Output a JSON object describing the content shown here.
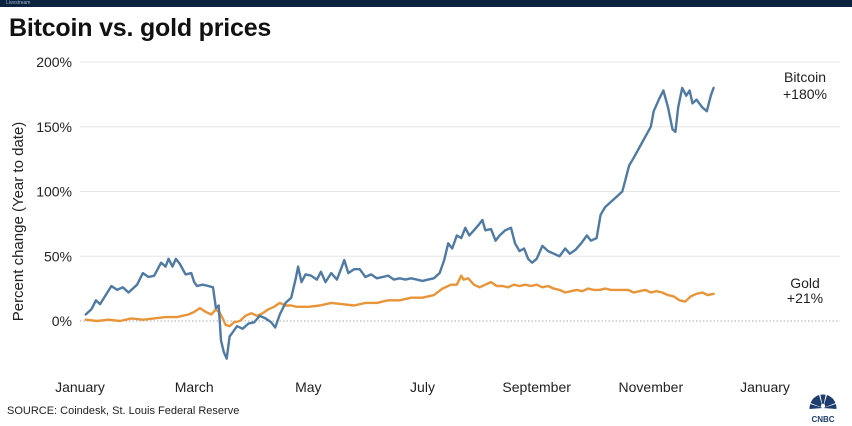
{
  "header": {
    "watermark": "Livestream",
    "title": "Bitcoin vs. gold prices"
  },
  "footer": {
    "source": "SOURCE: Coindesk, St. Louis Federal Reserve",
    "logo_text": "CNBC"
  },
  "chart_data": {
    "type": "line",
    "title": "Bitcoin vs. gold prices",
    "ylabel": "Percent change (Year to date)",
    "xlabel": "",
    "ylim": [
      -35,
      205
    ],
    "y_ticks": [
      0,
      50,
      100,
      150,
      200
    ],
    "y_tick_labels": [
      "0%",
      "50%",
      "100%",
      "150%",
      "200%"
    ],
    "x_tick_labels": [
      "January",
      "March",
      "May",
      "July",
      "September",
      "November",
      "January"
    ],
    "x_tick_months": [
      0,
      2,
      4,
      6,
      8,
      10,
      12
    ],
    "x_unit": "months since start of year",
    "grid": "horizontal",
    "annotations": [
      {
        "series": "Bitcoin",
        "line1": "Bitcoin",
        "line2": "+180%"
      },
      {
        "series": "Gold",
        "line1": "Gold",
        "line2": "+21%"
      }
    ],
    "series": [
      {
        "name": "Bitcoin",
        "color": "#4f7aa3",
        "points": [
          [
            0.1,
            5
          ],
          [
            0.2,
            9
          ],
          [
            0.28,
            16
          ],
          [
            0.35,
            13
          ],
          [
            0.45,
            20
          ],
          [
            0.55,
            27
          ],
          [
            0.65,
            24
          ],
          [
            0.75,
            26
          ],
          [
            0.85,
            22
          ],
          [
            1.0,
            28
          ],
          [
            1.1,
            37
          ],
          [
            1.2,
            34
          ],
          [
            1.3,
            35
          ],
          [
            1.42,
            45
          ],
          [
            1.5,
            42
          ],
          [
            1.55,
            48
          ],
          [
            1.62,
            42
          ],
          [
            1.68,
            48
          ],
          [
            1.75,
            44
          ],
          [
            1.85,
            36
          ],
          [
            1.95,
            37
          ],
          [
            2.0,
            30
          ],
          [
            2.05,
            27
          ],
          [
            2.15,
            28
          ],
          [
            2.25,
            27
          ],
          [
            2.33,
            26
          ],
          [
            2.38,
            10
          ],
          [
            2.43,
            12
          ],
          [
            2.47,
            -15
          ],
          [
            2.52,
            -24
          ],
          [
            2.57,
            -29
          ],
          [
            2.62,
            -12
          ],
          [
            2.67,
            -9
          ],
          [
            2.75,
            -4
          ],
          [
            2.85,
            -6
          ],
          [
            2.95,
            -2
          ],
          [
            3.05,
            -1
          ],
          [
            3.15,
            4
          ],
          [
            3.25,
            2
          ],
          [
            3.35,
            -1
          ],
          [
            3.42,
            -5
          ],
          [
            3.5,
            5
          ],
          [
            3.6,
            14
          ],
          [
            3.7,
            18
          ],
          [
            3.78,
            33
          ],
          [
            3.82,
            42
          ],
          [
            3.88,
            30
          ],
          [
            3.95,
            36
          ],
          [
            4.05,
            35
          ],
          [
            4.15,
            32
          ],
          [
            4.22,
            38
          ],
          [
            4.3,
            30
          ],
          [
            4.4,
            37
          ],
          [
            4.5,
            32
          ],
          [
            4.58,
            41
          ],
          [
            4.63,
            47
          ],
          [
            4.7,
            37
          ],
          [
            4.8,
            40
          ],
          [
            4.9,
            40
          ],
          [
            5.0,
            34
          ],
          [
            5.1,
            36
          ],
          [
            5.2,
            33
          ],
          [
            5.3,
            34
          ],
          [
            5.4,
            35
          ],
          [
            5.5,
            32
          ],
          [
            5.6,
            33
          ],
          [
            5.7,
            32
          ],
          [
            5.8,
            33
          ],
          [
            5.9,
            32
          ],
          [
            6.0,
            31
          ],
          [
            6.1,
            32
          ],
          [
            6.2,
            33
          ],
          [
            6.3,
            37
          ],
          [
            6.38,
            47
          ],
          [
            6.45,
            60
          ],
          [
            6.52,
            56
          ],
          [
            6.6,
            66
          ],
          [
            6.68,
            64
          ],
          [
            6.75,
            72
          ],
          [
            6.82,
            66
          ],
          [
            6.9,
            70
          ],
          [
            6.98,
            74
          ],
          [
            7.05,
            78
          ],
          [
            7.1,
            70
          ],
          [
            7.2,
            71
          ],
          [
            7.28,
            62
          ],
          [
            7.35,
            66
          ],
          [
            7.45,
            70
          ],
          [
            7.55,
            72
          ],
          [
            7.62,
            60
          ],
          [
            7.7,
            54
          ],
          [
            7.78,
            56
          ],
          [
            7.85,
            48
          ],
          [
            7.92,
            45
          ],
          [
            8.0,
            48
          ],
          [
            8.1,
            58
          ],
          [
            8.2,
            54
          ],
          [
            8.3,
            52
          ],
          [
            8.4,
            50
          ],
          [
            8.5,
            56
          ],
          [
            8.58,
            52
          ],
          [
            8.68,
            55
          ],
          [
            8.78,
            60
          ],
          [
            8.88,
            66
          ],
          [
            8.95,
            62
          ],
          [
            9.05,
            64
          ],
          [
            9.12,
            82
          ],
          [
            9.2,
            88
          ],
          [
            9.3,
            92
          ],
          [
            9.4,
            96
          ],
          [
            9.5,
            100
          ],
          [
            9.55,
            108
          ],
          [
            9.62,
            120
          ],
          [
            9.7,
            126
          ],
          [
            9.8,
            134
          ],
          [
            9.9,
            142
          ],
          [
            10.0,
            150
          ],
          [
            10.05,
            162
          ],
          [
            10.15,
            172
          ],
          [
            10.22,
            178
          ],
          [
            10.3,
            165
          ],
          [
            10.38,
            148
          ],
          [
            10.43,
            146
          ],
          [
            10.48,
            165
          ],
          [
            10.55,
            180
          ],
          [
            10.62,
            174
          ],
          [
            10.68,
            178
          ],
          [
            10.73,
            168
          ],
          [
            10.8,
            171
          ],
          [
            10.9,
            165
          ],
          [
            10.98,
            162
          ],
          [
            11.05,
            174
          ],
          [
            11.1,
            180
          ]
        ]
      },
      {
        "name": "Gold",
        "color": "#e8953a",
        "points": [
          [
            0.1,
            1
          ],
          [
            0.3,
            0
          ],
          [
            0.5,
            1
          ],
          [
            0.7,
            0
          ],
          [
            0.9,
            2
          ],
          [
            1.1,
            1
          ],
          [
            1.3,
            2
          ],
          [
            1.5,
            3
          ],
          [
            1.7,
            3
          ],
          [
            1.9,
            5
          ],
          [
            2.0,
            7
          ],
          [
            2.1,
            10
          ],
          [
            2.2,
            7
          ],
          [
            2.3,
            5
          ],
          [
            2.38,
            9
          ],
          [
            2.45,
            6
          ],
          [
            2.5,
            2
          ],
          [
            2.55,
            -3
          ],
          [
            2.62,
            -4
          ],
          [
            2.7,
            -1
          ],
          [
            2.8,
            0
          ],
          [
            2.9,
            4
          ],
          [
            3.0,
            6
          ],
          [
            3.1,
            4
          ],
          [
            3.2,
            6
          ],
          [
            3.3,
            9
          ],
          [
            3.4,
            11
          ],
          [
            3.5,
            14
          ],
          [
            3.6,
            12
          ],
          [
            3.7,
            12
          ],
          [
            3.8,
            11
          ],
          [
            3.9,
            11
          ],
          [
            4.0,
            11
          ],
          [
            4.2,
            12
          ],
          [
            4.4,
            14
          ],
          [
            4.6,
            13
          ],
          [
            4.8,
            12
          ],
          [
            5.0,
            14
          ],
          [
            5.2,
            14
          ],
          [
            5.4,
            16
          ],
          [
            5.6,
            16
          ],
          [
            5.8,
            18
          ],
          [
            6.0,
            18
          ],
          [
            6.2,
            20
          ],
          [
            6.35,
            25
          ],
          [
            6.5,
            28
          ],
          [
            6.6,
            28
          ],
          [
            6.68,
            35
          ],
          [
            6.72,
            32
          ],
          [
            6.8,
            33
          ],
          [
            6.9,
            28
          ],
          [
            7.0,
            26
          ],
          [
            7.1,
            28
          ],
          [
            7.2,
            30
          ],
          [
            7.3,
            27
          ],
          [
            7.4,
            27
          ],
          [
            7.5,
            26
          ],
          [
            7.6,
            28
          ],
          [
            7.7,
            27
          ],
          [
            7.8,
            28
          ],
          [
            7.9,
            27
          ],
          [
            8.0,
            28
          ],
          [
            8.1,
            26
          ],
          [
            8.2,
            27
          ],
          [
            8.3,
            25
          ],
          [
            8.4,
            24
          ],
          [
            8.5,
            22
          ],
          [
            8.6,
            23
          ],
          [
            8.7,
            24
          ],
          [
            8.8,
            23
          ],
          [
            8.9,
            25
          ],
          [
            9.0,
            24
          ],
          [
            9.1,
            24
          ],
          [
            9.2,
            25
          ],
          [
            9.3,
            24
          ],
          [
            9.4,
            24
          ],
          [
            9.5,
            24
          ],
          [
            9.6,
            24
          ],
          [
            9.7,
            22
          ],
          [
            9.8,
            23
          ],
          [
            9.9,
            24
          ],
          [
            10.0,
            22
          ],
          [
            10.1,
            23
          ],
          [
            10.2,
            22
          ],
          [
            10.3,
            20
          ],
          [
            10.4,
            19
          ],
          [
            10.5,
            16
          ],
          [
            10.6,
            15
          ],
          [
            10.7,
            19
          ],
          [
            10.8,
            21
          ],
          [
            10.9,
            22
          ],
          [
            11.0,
            20
          ],
          [
            11.1,
            21
          ]
        ]
      }
    ]
  }
}
